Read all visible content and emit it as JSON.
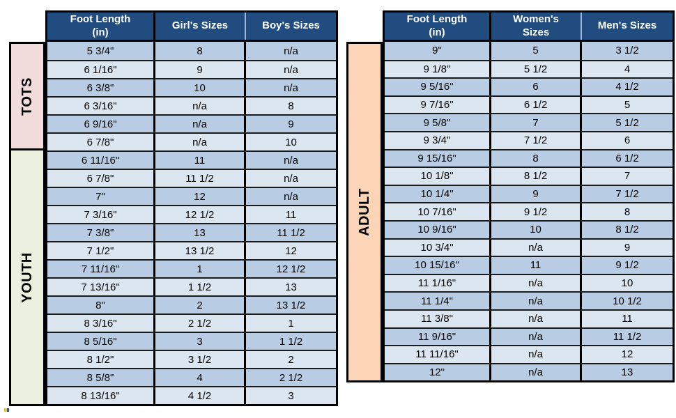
{
  "styles": {
    "header_bg": "#204C80",
    "header_text": "#FFFFFF",
    "row_stripe_dark": "#B8CCE4",
    "row_stripe_light": "#DCE6F1",
    "grid_color": "#000000",
    "tots_band_color": "#F2DCDB",
    "youth_band_color": "#EBF1DE",
    "adult_band_color": "#FBD5B5"
  },
  "chart_data": [
    {
      "type": "table",
      "columns": [
        "Foot Length\n(in)",
        "Girl's Sizes",
        "Boy's Sizes"
      ],
      "row_groups": [
        {
          "label": "TOTS",
          "band_color": "#F2DCDB",
          "rows": [
            [
              "5 3/4\"",
              "8",
              "n/a"
            ],
            [
              "6 1/16\"",
              "9",
              "n/a"
            ],
            [
              "6 3/8\"",
              "10",
              "n/a"
            ],
            [
              "6 3/16\"",
              "n/a",
              "8"
            ],
            [
              "6 9/16\"",
              "n/a",
              "9"
            ],
            [
              "6 7/8\"",
              "n/a",
              "10"
            ]
          ]
        },
        {
          "label": "YOUTH",
          "band_color": "#EBF1DE",
          "rows": [
            [
              "6 11/16\"",
              "11",
              "n/a"
            ],
            [
              "6 7/8\"",
              "11 1/2",
              "n/a"
            ],
            [
              "7\"",
              "12",
              "n/a"
            ],
            [
              "7 3/16\"",
              "12 1/2",
              "11"
            ],
            [
              "7 3/8\"",
              "13",
              "11 1/2"
            ],
            [
              "7 1/2\"",
              "13 1/2",
              "12"
            ],
            [
              "7 11/16\"",
              "1",
              "12 1/2"
            ],
            [
              "7 13/16\"",
              "1 1/2",
              "13"
            ],
            [
              "8\"",
              "2",
              "13 1/2"
            ],
            [
              "8 3/16\"",
              "2 1/2",
              "1"
            ],
            [
              "8 5/16\"",
              "3",
              "1 1/2"
            ],
            [
              "8 1/2\"",
              "3 1/2",
              "2"
            ],
            [
              "8 5/8\"",
              "4",
              "2 1/2"
            ],
            [
              "8 13/16\"",
              "4 1/2",
              "3"
            ]
          ]
        }
      ]
    },
    {
      "type": "table",
      "columns": [
        "Foot Length\n(in)",
        "Women's\nSizes",
        "Men's Sizes"
      ],
      "row_groups": [
        {
          "label": "ADULT",
          "band_color": "#FBD5B5",
          "rows": [
            [
              "9\"",
              "5",
              "3 1/2"
            ],
            [
              "9 1/8\"",
              "5 1/2",
              "4"
            ],
            [
              "9 5/16\"",
              "6",
              "4 1/2"
            ],
            [
              "9 7/16\"",
              "6 1/2",
              "5"
            ],
            [
              "9 5/8\"",
              "7",
              "5 1/2"
            ],
            [
              "9 3/4\"",
              "7 1/2",
              "6"
            ],
            [
              "9 15/16\"",
              "8",
              "6 1/2"
            ],
            [
              "10 1/8\"",
              "8 1/2",
              "7"
            ],
            [
              "10 1/4\"",
              "9",
              "7 1/2"
            ],
            [
              "10 7/16\"",
              "9 1/2",
              "8"
            ],
            [
              "10 9/16\"",
              "10",
              "8 1/2"
            ],
            [
              "10 3/4\"",
              "n/a",
              "9"
            ],
            [
              "10 15/16\"",
              "11",
              "9 1/2"
            ],
            [
              "11 1/16\"",
              "n/a",
              "10"
            ],
            [
              "11 1/4\"",
              "n/a",
              "10 1/2"
            ],
            [
              "11 3/8\"",
              "n/a",
              "11"
            ],
            [
              "11 9/16\"",
              "n/a",
              "11 1/2"
            ],
            [
              "11 11/16\"",
              "n/a",
              "12"
            ],
            [
              "12\"",
              "n/a",
              "13"
            ]
          ]
        }
      ]
    }
  ]
}
